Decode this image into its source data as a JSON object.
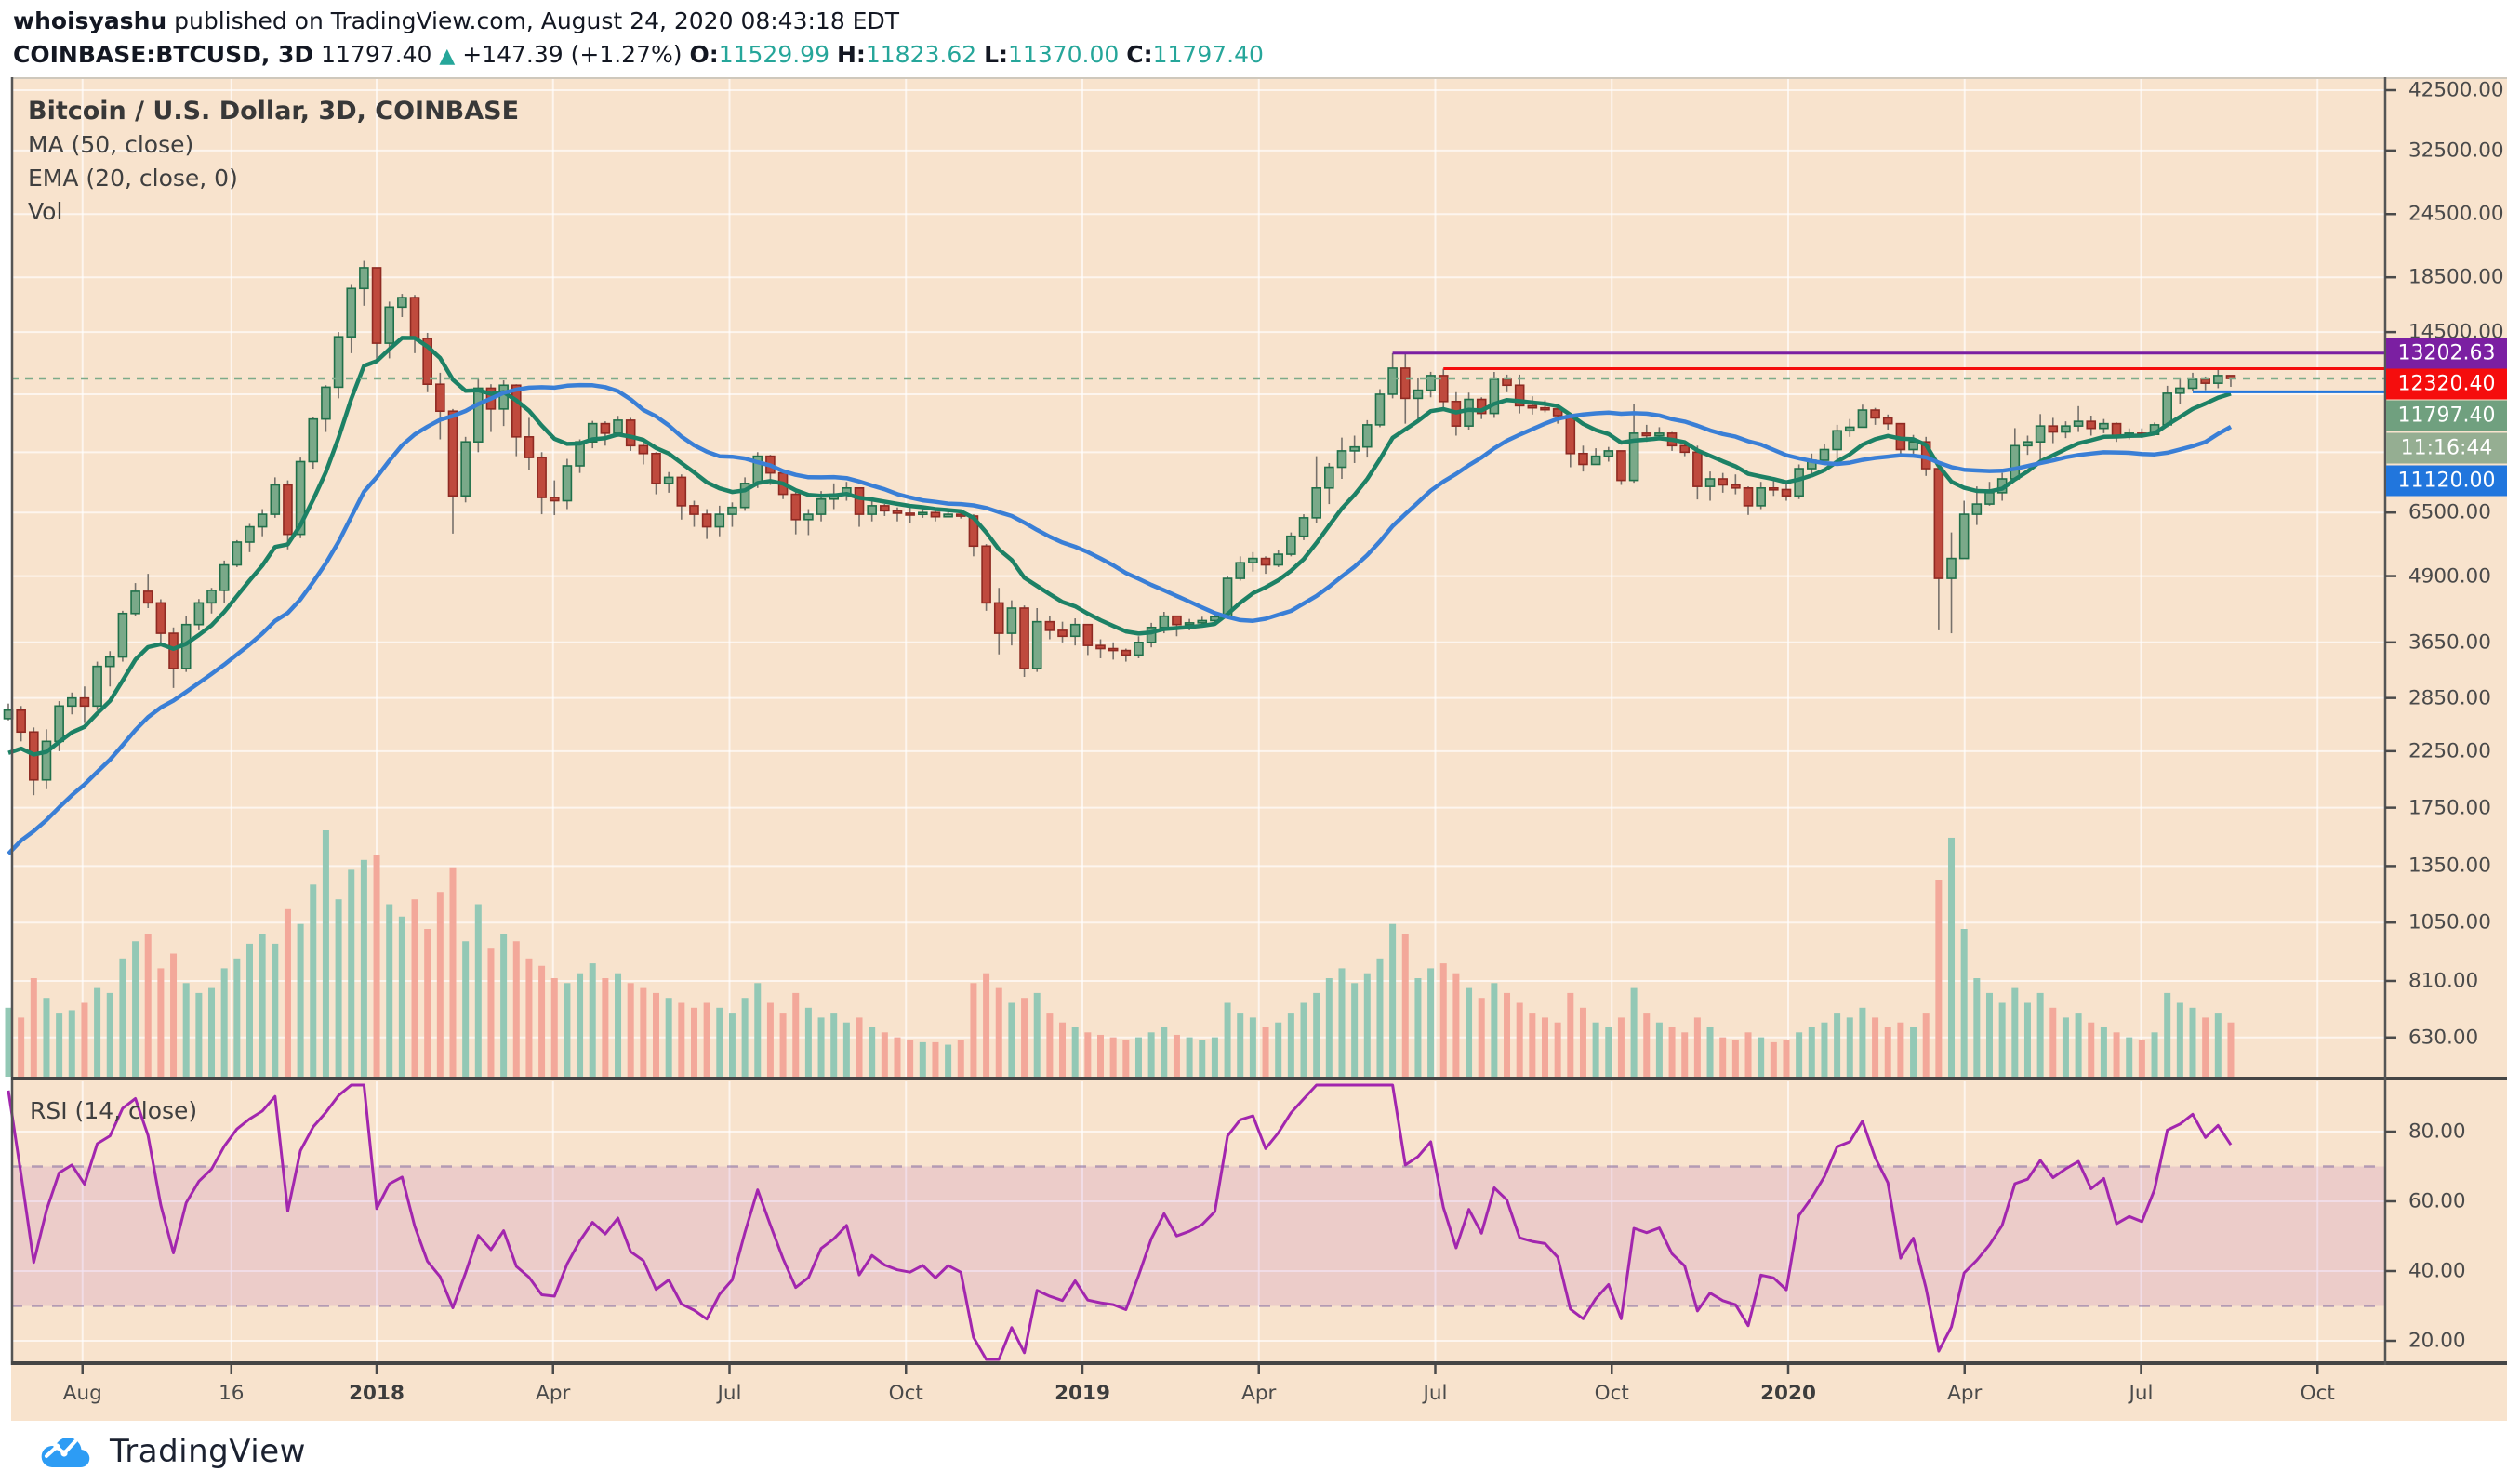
{
  "header": {
    "author": "whoisyashu",
    "published": " published on TradingView.com, August 24, 2020 08:43:18 EDT",
    "symbol": "COINBASE:BTCUSD, 3D",
    "last_price": "11797.40",
    "up_arrow": "▲",
    "change": "+147.39 (+1.27%)",
    "ohlc": [
      {
        "k": "O:",
        "v": "11529.99"
      },
      {
        "k": "H:",
        "v": "11823.62"
      },
      {
        "k": "L:",
        "v": "11370.00"
      },
      {
        "k": "C:",
        "v": "11797.40"
      }
    ]
  },
  "legend": {
    "title": "Bitcoin / U.S. Dollar, 3D, COINBASE",
    "ma": "MA (50, close)",
    "ema": "EMA (20, close, 0)",
    "vol": "Vol"
  },
  "rsi_legend": "RSI (14, close)",
  "footer": {
    "brand": "TradingView"
  },
  "price_axis": {
    "labels": [
      42500.0,
      32500.0,
      24500.0,
      18500.0,
      14500.0,
      6500.0,
      4900.0,
      3650.0,
      2850.0,
      2250.0,
      1750.0,
      1350.0,
      1050.0,
      810.0,
      630.0
    ],
    "hidden_grid_levels": [
      11000,
      8500
    ],
    "badges": [
      {
        "text": "13202.63",
        "bg": "#7b1fa2",
        "y": 380
      },
      {
        "text": "12320.40",
        "bg": "#f50d0d",
        "y": 413
      },
      {
        "text": "11797.40",
        "bg": "#70a07f",
        "y": 447
      },
      {
        "text": "11:16:44",
        "bg": "#95ae92",
        "y": 482
      },
      {
        "text": "11120.00",
        "bg": "#2176dd",
        "y": 517
      }
    ]
  },
  "rsi_axis": {
    "labels": [
      80.0,
      60.0,
      40.0,
      20.0
    ]
  },
  "time_axis": {
    "labels": [
      {
        "text": "Aug",
        "m": -5,
        "year": false
      },
      {
        "text": "16",
        "m": -2.47,
        "year": false
      },
      {
        "text": "2018",
        "m": 0,
        "year": true
      },
      {
        "text": "Apr",
        "m": 3,
        "year": false
      },
      {
        "text": "Jul",
        "m": 6,
        "year": false
      },
      {
        "text": "Oct",
        "m": 9,
        "year": false
      },
      {
        "text": "2019",
        "m": 12,
        "year": true
      },
      {
        "text": "Apr",
        "m": 15,
        "year": false
      },
      {
        "text": "Jul",
        "m": 18,
        "year": false
      },
      {
        "text": "Oct",
        "m": 21,
        "year": false
      },
      {
        "text": "2020",
        "m": 24,
        "year": true
      },
      {
        "text": "Apr",
        "m": 27,
        "year": false
      },
      {
        "text": "Jul",
        "m": 30,
        "year": false
      },
      {
        "text": "Oct",
        "m": 33,
        "year": false
      }
    ]
  },
  "colors": {
    "chart_bg": "#f8e3cd",
    "grid": "rgba(255,255,255,0.65)",
    "up_fill": "#7aa989",
    "up_stroke": "#20704a",
    "down_fill": "#bf4a3d",
    "down_stroke": "#8f2a22",
    "wick": "#77716b",
    "vol_up": "#93c8b5",
    "vol_down": "#f3a89a",
    "ma": "#3a7fd6",
    "ema": "#1d8165",
    "rsi": "#a226ae",
    "rsi_band_fill": "rgba(156,39,176,0.12)",
    "rsi_band_edge": "rgba(130,105,160,0.55)",
    "hline_purple": "#7b1fa2",
    "hline_red": "#f50d0d",
    "price_line": "#7dab8a",
    "hline_blue": "#2176dd",
    "border_dark": "#454545",
    "teal": "#26a69a"
  },
  "chart_data": {
    "type": "candlestick",
    "title": "Bitcoin / U.S. Dollar",
    "symbol": "COINBASE:BTCUSD",
    "timeframe": "3D",
    "y_scale": "log",
    "x_range": [
      "Jun 2017",
      "Oct 2020"
    ],
    "y_axis_ticks": [
      42500,
      32500,
      24500,
      18500,
      14500,
      6500,
      4900,
      3650,
      2850,
      2250,
      1750,
      1350,
      1050,
      810,
      630
    ],
    "indicators": [
      {
        "name": "MA",
        "period": 50,
        "source": "close"
      },
      {
        "name": "EMA",
        "period": 20,
        "source": "close"
      },
      {
        "name": "Vol"
      },
      {
        "name": "RSI",
        "period": 14,
        "source": "close",
        "band": [
          30,
          70
        ],
        "ticks": [
          80,
          60,
          40,
          20
        ]
      }
    ],
    "hlines": [
      {
        "level": 13202.63,
        "color": "#7b1fa2",
        "from_candle": 109,
        "style": "solid"
      },
      {
        "level": 12320.4,
        "color": "#f50d0d",
        "from_candle": 113,
        "style": "solid"
      },
      {
        "level": 11797.4,
        "color": "#7dab8a",
        "from_candle": 0,
        "style": "dashed"
      },
      {
        "level": 11120.0,
        "color": "#2176dd",
        "from_candle": 172,
        "style": "solid"
      }
    ],
    "first_open": 2600,
    "prehistory_closes": [
      420,
      450,
      480,
      520,
      560,
      600,
      650,
      700,
      760,
      820,
      900,
      980,
      1060,
      1150,
      1250,
      1380,
      1520,
      1700,
      1900,
      2150,
      2400,
      2600,
      2500,
      2550
    ],
    "candles_hlc": [
      [
        2780,
        2580,
        2700
      ],
      [
        2750,
        2350,
        2450
      ],
      [
        2500,
        1850,
        1980
      ],
      [
        2480,
        1900,
        2350
      ],
      [
        2810,
        2250,
        2750
      ],
      [
        2920,
        2650,
        2850
      ],
      [
        3000,
        2550,
        2750
      ],
      [
        3350,
        2700,
        3280
      ],
      [
        3510,
        3000,
        3420
      ],
      [
        4200,
        3350,
        4150
      ],
      [
        4750,
        4100,
        4580
      ],
      [
        4950,
        4250,
        4350
      ],
      [
        4420,
        3650,
        3800
      ],
      [
        3900,
        2980,
        3250
      ],
      [
        4100,
        3200,
        3950
      ],
      [
        4425,
        3850,
        4350
      ],
      [
        4650,
        4150,
        4600
      ],
      [
        5250,
        4350,
        5150
      ],
      [
        5750,
        5100,
        5700
      ],
      [
        6180,
        5450,
        6100
      ],
      [
        6600,
        5850,
        6450
      ],
      [
        7600,
        6350,
        7350
      ],
      [
        7500,
        5520,
        5900
      ],
      [
        8300,
        5800,
        8150
      ],
      [
        9950,
        7900,
        9850
      ],
      [
        11450,
        9300,
        11350
      ],
      [
        14500,
        10800,
        14200
      ],
      [
        17950,
        13200,
        17600
      ],
      [
        19900,
        16300,
        19300
      ],
      [
        19100,
        12750,
        13800
      ],
      [
        16600,
        12900,
        16200
      ],
      [
        17180,
        15500,
        16900
      ],
      [
        17100,
        13200,
        14100
      ],
      [
        14450,
        11100,
        11500
      ],
      [
        12100,
        9000,
        10200
      ],
      [
        10300,
        5920,
        7000
      ],
      [
        9100,
        6800,
        8900
      ],
      [
        11780,
        8500,
        11300
      ],
      [
        11500,
        9300,
        10300
      ],
      [
        11700,
        9550,
        11450
      ],
      [
        11500,
        8350,
        9100
      ],
      [
        9900,
        7850,
        8300
      ],
      [
        8500,
        6450,
        6950
      ],
      [
        7500,
        6425,
        6850
      ],
      [
        8250,
        6600,
        8000
      ],
      [
        9000,
        7750,
        8900
      ],
      [
        9770,
        8650,
        9650
      ],
      [
        9750,
        8750,
        9250
      ],
      [
        9990,
        9100,
        9800
      ],
      [
        9900,
        8550,
        8750
      ],
      [
        8950,
        8050,
        8450
      ],
      [
        8500,
        7050,
        7400
      ],
      [
        7780,
        7100,
        7600
      ],
      [
        7700,
        6300,
        6700
      ],
      [
        6850,
        6100,
        6450
      ],
      [
        6600,
        5780,
        6100
      ],
      [
        6700,
        5850,
        6450
      ],
      [
        6800,
        6100,
        6650
      ],
      [
        7600,
        6550,
        7400
      ],
      [
        8500,
        7250,
        8350
      ],
      [
        8400,
        7350,
        7750
      ],
      [
        7800,
        6900,
        7050
      ],
      [
        7150,
        5900,
        6300
      ],
      [
        6600,
        5880,
        6450
      ],
      [
        7150,
        6250,
        6900
      ],
      [
        7400,
        6600,
        7050
      ],
      [
        7450,
        6850,
        7250
      ],
      [
        7000,
        6100,
        6450
      ],
      [
        6850,
        6250,
        6700
      ],
      [
        6750,
        6400,
        6550
      ],
      [
        6650,
        6250,
        6480
      ],
      [
        6700,
        6200,
        6450
      ],
      [
        6600,
        6350,
        6500
      ],
      [
        6550,
        6250,
        6380
      ],
      [
        6560,
        6360,
        6450
      ],
      [
        6540,
        6330,
        6400
      ],
      [
        6450,
        5350,
        5600
      ],
      [
        5650,
        4200,
        4350
      ],
      [
        4650,
        3460,
        3800
      ],
      [
        4400,
        3600,
        4250
      ],
      [
        4300,
        3130,
        3250
      ],
      [
        4250,
        3200,
        4000
      ],
      [
        4100,
        3700,
        3850
      ],
      [
        4000,
        3650,
        3750
      ],
      [
        4060,
        3600,
        3950
      ],
      [
        3950,
        3450,
        3600
      ],
      [
        3700,
        3400,
        3550
      ],
      [
        3650,
        3380,
        3520
      ],
      [
        3550,
        3350,
        3450
      ],
      [
        3750,
        3400,
        3650
      ],
      [
        3980,
        3570,
        3900
      ],
      [
        4180,
        3800,
        4100
      ],
      [
        4100,
        3750,
        3950
      ],
      [
        4050,
        3850,
        3980
      ],
      [
        4090,
        3900,
        4020
      ],
      [
        4150,
        3950,
        4090
      ],
      [
        4900,
        4080,
        4850
      ],
      [
        5350,
        4800,
        5200
      ],
      [
        5450,
        5000,
        5300
      ],
      [
        5350,
        4950,
        5150
      ],
      [
        5500,
        5100,
        5400
      ],
      [
        5950,
        5350,
        5850
      ],
      [
        6450,
        5750,
        6350
      ],
      [
        8350,
        6200,
        7250
      ],
      [
        8100,
        6750,
        7950
      ],
      [
        9070,
        7550,
        8550
      ],
      [
        9150,
        8100,
        8700
      ],
      [
        9800,
        8300,
        9600
      ],
      [
        11250,
        9500,
        11000
      ],
      [
        13203,
        10800,
        12350
      ],
      [
        13180,
        9650,
        10800
      ],
      [
        11850,
        9870,
        11200
      ],
      [
        12150,
        10850,
        11950
      ],
      [
        12320,
        10300,
        10650
      ],
      [
        11100,
        9150,
        9550
      ],
      [
        11080,
        9400,
        10750
      ],
      [
        10850,
        9850,
        10100
      ],
      [
        12145,
        9900,
        11750
      ],
      [
        12000,
        11100,
        11450
      ],
      [
        12000,
        10100,
        10450
      ],
      [
        10900,
        10050,
        10350
      ],
      [
        10700,
        10150,
        10300
      ],
      [
        10450,
        9650,
        10000
      ],
      [
        10050,
        7950,
        8450
      ],
      [
        8750,
        7800,
        8050
      ],
      [
        8650,
        8050,
        8350
      ],
      [
        8700,
        8150,
        8550
      ],
      [
        8350,
        7350,
        7500
      ],
      [
        10540,
        7420,
        9250
      ],
      [
        9600,
        8900,
        9150
      ],
      [
        9500,
        9000,
        9250
      ],
      [
        9300,
        8550,
        8750
      ],
      [
        8800,
        8350,
        8500
      ],
      [
        8750,
        6890,
        7300
      ],
      [
        7800,
        6850,
        7550
      ],
      [
        7750,
        7100,
        7350
      ],
      [
        7700,
        7050,
        7250
      ],
      [
        7300,
        6430,
        6700
      ],
      [
        7450,
        6600,
        7250
      ],
      [
        7520,
        7000,
        7200
      ],
      [
        7500,
        6850,
        7000
      ],
      [
        8050,
        6900,
        7900
      ],
      [
        8450,
        7700,
        8200
      ],
      [
        8800,
        8200,
        8600
      ],
      [
        9600,
        8250,
        9350
      ],
      [
        9850,
        9100,
        9500
      ],
      [
        10500,
        9650,
        10250
      ],
      [
        10350,
        9600,
        9900
      ],
      [
        10050,
        9400,
        9650
      ],
      [
        9200,
        8450,
        8600
      ],
      [
        9180,
        8400,
        8900
      ],
      [
        9100,
        7650,
        7900
      ],
      [
        8150,
        3850,
        4850
      ],
      [
        5950,
        3800,
        5300
      ],
      [
        6850,
        5650,
        6450
      ],
      [
        7300,
        6150,
        6750
      ],
      [
        7450,
        6700,
        7100
      ],
      [
        7750,
        6850,
        7550
      ],
      [
        9460,
        7600,
        8750
      ],
      [
        9150,
        8400,
        8900
      ],
      [
        10070,
        8150,
        9550
      ],
      [
        9900,
        8850,
        9300
      ],
      [
        9750,
        9050,
        9550
      ],
      [
        10430,
        9300,
        9750
      ],
      [
        10000,
        9150,
        9450
      ],
      [
        9850,
        9250,
        9650
      ],
      [
        9700,
        8900,
        9150
      ],
      [
        9450,
        9000,
        9250
      ],
      [
        9450,
        9050,
        9200
      ],
      [
        9700,
        9150,
        9600
      ],
      [
        11420,
        9500,
        11050
      ],
      [
        11800,
        10550,
        11300
      ],
      [
        12100,
        11150,
        11750
      ],
      [
        11900,
        11200,
        11550
      ],
      [
        12380,
        11300,
        11950
      ],
      [
        11824,
        11370,
        11797
      ]
    ],
    "volumes": [
      28,
      24,
      40,
      32,
      26,
      27,
      30,
      36,
      34,
      48,
      55,
      58,
      44,
      50,
      38,
      34,
      36,
      44,
      48,
      54,
      58,
      54,
      68,
      62,
      78,
      100,
      72,
      84,
      88,
      90,
      70,
      65,
      72,
      60,
      75,
      85,
      55,
      70,
      52,
      58,
      55,
      48,
      45,
      40,
      38,
      42,
      46,
      40,
      42,
      38,
      36,
      34,
      32,
      30,
      28,
      30,
      28,
      26,
      32,
      38,
      30,
      26,
      34,
      28,
      24,
      26,
      22,
      24,
      20,
      18,
      16,
      15,
      14,
      14,
      13,
      15,
      38,
      42,
      36,
      30,
      32,
      34,
      26,
      22,
      20,
      18,
      17,
      16,
      15,
      16,
      18,
      20,
      17,
      16,
      15,
      16,
      30,
      26,
      24,
      20,
      22,
      26,
      30,
      34,
      40,
      44,
      38,
      42,
      48,
      62,
      58,
      40,
      44,
      46,
      42,
      36,
      32,
      38,
      34,
      30,
      26,
      24,
      22,
      34,
      28,
      22,
      20,
      24,
      36,
      26,
      22,
      20,
      18,
      24,
      20,
      16,
      15,
      18,
      16,
      14,
      15,
      18,
      20,
      22,
      26,
      24,
      28,
      24,
      20,
      22,
      20,
      26,
      80,
      97,
      60,
      40,
      34,
      30,
      36,
      30,
      34,
      28,
      24,
      26,
      22,
      20,
      18,
      16,
      15,
      18,
      34,
      30,
      28,
      24,
      26,
      22
    ]
  }
}
